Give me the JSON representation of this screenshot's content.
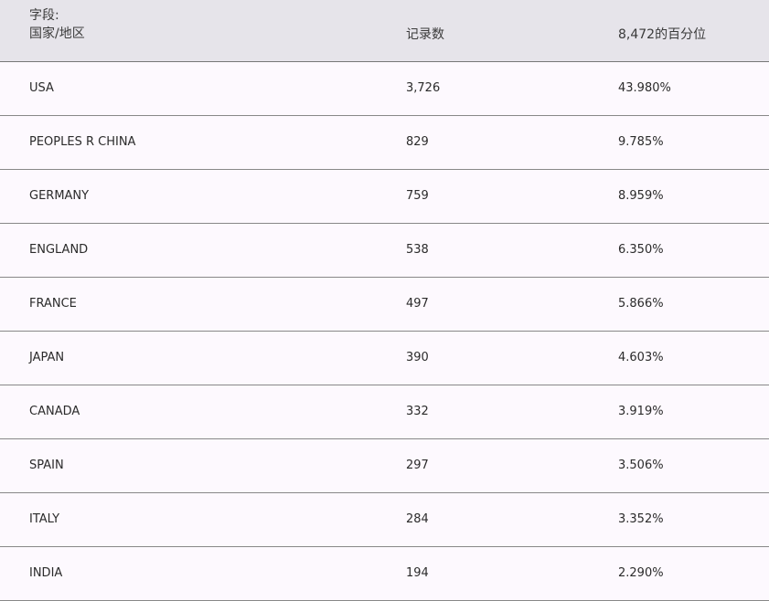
{
  "header": {
    "field_label": "字段:",
    "field_name": "国家/地区",
    "count": "记录数",
    "percent": "8,472的百分位"
  },
  "rows": [
    {
      "country": "USA",
      "count": "3,726",
      "percent": "43.980%"
    },
    {
      "country": "PEOPLES R CHINA",
      "count": "829",
      "percent": "9.785%"
    },
    {
      "country": "GERMANY",
      "count": "759",
      "percent": "8.959%"
    },
    {
      "country": "ENGLAND",
      "count": "538",
      "percent": "6.350%"
    },
    {
      "country": "FRANCE",
      "count": "497",
      "percent": "5.866%"
    },
    {
      "country": "JAPAN",
      "count": "390",
      "percent": "4.603%"
    },
    {
      "country": "CANADA",
      "count": "332",
      "percent": "3.919%"
    },
    {
      "country": "SPAIN",
      "count": "297",
      "percent": "3.506%"
    },
    {
      "country": "ITALY",
      "count": "284",
      "percent": "3.352%"
    },
    {
      "country": "INDIA",
      "count": "194",
      "percent": "2.290%"
    }
  ]
}
